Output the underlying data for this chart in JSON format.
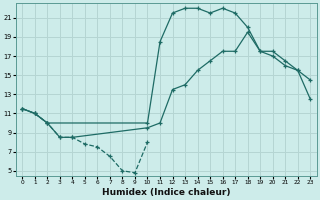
{
  "xlabel": "Humidex (Indice chaleur)",
  "background_color": "#cdecea",
  "grid_color": "#b5d5d3",
  "line_color": "#1e6b65",
  "xlim": [
    -0.5,
    23.5
  ],
  "ylim": [
    4.5,
    22.5
  ],
  "yticks": [
    5,
    7,
    9,
    11,
    13,
    15,
    17,
    19,
    21
  ],
  "xticks": [
    0,
    1,
    2,
    3,
    4,
    5,
    6,
    7,
    8,
    9,
    10,
    11,
    12,
    13,
    14,
    15,
    16,
    17,
    18,
    19,
    20,
    21,
    22,
    23
  ],
  "curve1_x": [
    0,
    1,
    2,
    3,
    4,
    5,
    6,
    7,
    8,
    9,
    10
  ],
  "curve1_y": [
    11.5,
    11.0,
    10.0,
    8.5,
    8.5,
    7.8,
    7.5,
    6.5,
    5.0,
    4.8,
    8.0
  ],
  "curve1_style": "--",
  "curve2_x": [
    0,
    1,
    2,
    10,
    11,
    12,
    13,
    14,
    15,
    16,
    17,
    18,
    19,
    20,
    21,
    22,
    23
  ],
  "curve2_y": [
    11.5,
    11.0,
    10.0,
    10.0,
    18.5,
    21.5,
    22.0,
    22.0,
    21.5,
    22.0,
    21.5,
    20.0,
    17.5,
    17.5,
    16.5,
    15.5,
    14.5
  ],
  "curve2_style": "-",
  "curve3_x": [
    0,
    1,
    2,
    3,
    4,
    10,
    11,
    12,
    13,
    14,
    15,
    16,
    17,
    18,
    19,
    20,
    21,
    22,
    23
  ],
  "curve3_y": [
    11.5,
    11.0,
    10.0,
    8.5,
    8.5,
    9.5,
    10.0,
    13.5,
    14.0,
    15.5,
    16.5,
    17.5,
    17.5,
    19.5,
    17.5,
    17.0,
    16.0,
    15.5,
    12.5
  ],
  "curve3_style": "-"
}
